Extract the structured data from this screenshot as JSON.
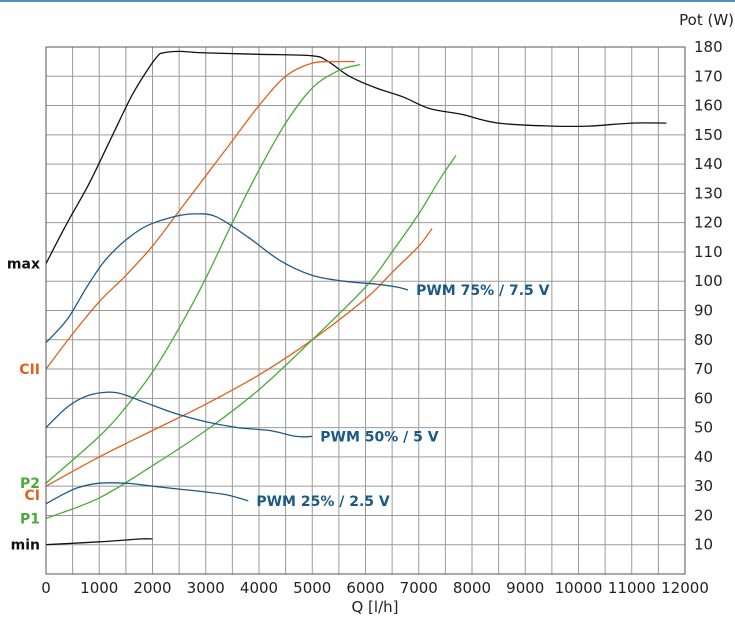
{
  "chart_data": {
    "type": "line",
    "xlabel": "Q [l/h]",
    "ylabel": "Pot (W)",
    "xlim": [
      0,
      12000
    ],
    "ylim": [
      0,
      180
    ],
    "x_ticks": [
      0,
      1000,
      2000,
      3000,
      4000,
      5000,
      6000,
      7000,
      8000,
      9000,
      10000,
      11000,
      12000
    ],
    "x_tick_labels": [
      "0",
      "1000",
      "2000",
      "3000",
      "4000",
      "5000",
      "6000",
      "7000",
      "8000",
      "9000",
      "10000",
      "11000",
      "12000"
    ],
    "y_ticks": [
      10,
      20,
      30,
      40,
      50,
      60,
      70,
      80,
      90,
      100,
      110,
      120,
      130,
      140,
      150,
      160,
      170,
      180
    ],
    "y_tick_labels": [
      "10",
      "20",
      "30",
      "40",
      "50",
      "60",
      "70",
      "80",
      "90",
      "100",
      "110",
      "120",
      "130",
      "140",
      "150",
      "160",
      "170",
      "180"
    ],
    "grid": true,
    "colors": {
      "black": "#111111",
      "orange": "#e2611b",
      "green": "#4aab3a",
      "blue": "#1c5a86"
    },
    "side_labels": [
      {
        "text": "max",
        "y": 106,
        "color": "#111111"
      },
      {
        "text": "CII",
        "y": 70,
        "color": "#e2611b"
      },
      {
        "text": "P2",
        "y": 31,
        "color": "#4aab3a"
      },
      {
        "text": "CI",
        "y": 27,
        "color": "#e2611b"
      },
      {
        "text": "P1",
        "y": 19,
        "color": "#4aab3a"
      },
      {
        "text": "min",
        "y": 10,
        "color": "#111111"
      }
    ],
    "curve_labels": [
      {
        "text": "PWM 75% / 7.5 V",
        "x": 6800,
        "y": 97,
        "color": "#1c5a86"
      },
      {
        "text": "PWM 50% / 5 V",
        "x": 5000,
        "y": 47,
        "color": "#1c5a86"
      },
      {
        "text": "PWM 25% / 2.5 V",
        "x": 3800,
        "y": 25,
        "color": "#1c5a86"
      }
    ],
    "series": [
      {
        "id": "max",
        "color": "#111111",
        "x": [
          0,
          400,
          800,
          1200,
          1600,
          1900,
          2100,
          2200,
          2500,
          3000,
          4000,
          5000,
          5300,
          5700,
          6200,
          6700,
          7200,
          7800,
          8500,
          9500,
          10200,
          11000,
          11650
        ],
        "y": [
          106,
          120,
          133,
          148,
          163,
          172,
          177,
          178,
          178.5,
          178,
          177.5,
          177,
          175,
          170,
          166,
          163,
          159,
          157,
          154,
          153,
          153,
          154,
          154
        ]
      },
      {
        "id": "min",
        "color": "#111111",
        "x": [
          0,
          500,
          1000,
          1500,
          1800,
          2000
        ],
        "y": [
          10,
          10.5,
          11,
          11.6,
          12,
          12
        ]
      },
      {
        "id": "CII",
        "color": "#e2611b",
        "x": [
          0,
          500,
          1000,
          1500,
          2000,
          2500,
          3000,
          3500,
          4000,
          4500,
          5000,
          5500,
          5800
        ],
        "y": [
          70,
          82,
          93,
          102,
          112,
          124,
          136,
          148,
          160,
          170,
          174.5,
          175,
          175
        ]
      },
      {
        "id": "CI",
        "color": "#e2611b",
        "x": [
          0,
          1000,
          2000,
          3000,
          4000,
          5000,
          6000,
          6500,
          7000,
          7250
        ],
        "y": [
          30,
          40,
          49,
          58,
          68,
          80,
          94,
          103,
          112,
          118
        ]
      },
      {
        "id": "P2",
        "color": "#4aab3a",
        "x": [
          0,
          1000,
          1500,
          2000,
          2500,
          3000,
          3500,
          4000,
          4500,
          5000,
          5500,
          5900
        ],
        "y": [
          31,
          47,
          57,
          69,
          84,
          101,
          120,
          138,
          154,
          166,
          172,
          174
        ]
      },
      {
        "id": "P1",
        "color": "#4aab3a",
        "x": [
          0,
          1000,
          2000,
          3000,
          4000,
          5000,
          6000,
          6500,
          7000,
          7400,
          7700
        ],
        "y": [
          19,
          26,
          37,
          49,
          63,
          80,
          98,
          110,
          123,
          135,
          143
        ]
      },
      {
        "id": "PWM75",
        "color": "#1c5a86",
        "x": [
          0,
          400,
          800,
          1200,
          1800,
          2400,
          2800,
          3200,
          3800,
          4400,
          5000,
          5600,
          6200,
          6600,
          6800
        ],
        "y": [
          79,
          87,
          99,
          109,
          118,
          122,
          123,
          122,
          115,
          107,
          102,
          100,
          99,
          98,
          97
        ]
      },
      {
        "id": "PWM50",
        "color": "#1c5a86",
        "x": [
          0,
          400,
          800,
          1300,
          1800,
          2400,
          3000,
          3600,
          4200,
          4700,
          5000
        ],
        "y": [
          50,
          57,
          61,
          62,
          59,
          55,
          52,
          50,
          49,
          47,
          47
        ]
      },
      {
        "id": "PWM25",
        "color": "#1c5a86",
        "x": [
          0,
          300,
          600,
          1000,
          1500,
          2000,
          2500,
          3000,
          3400,
          3800
        ],
        "y": [
          24,
          27,
          29.5,
          31,
          31,
          30,
          29,
          28,
          27,
          25
        ]
      }
    ]
  }
}
